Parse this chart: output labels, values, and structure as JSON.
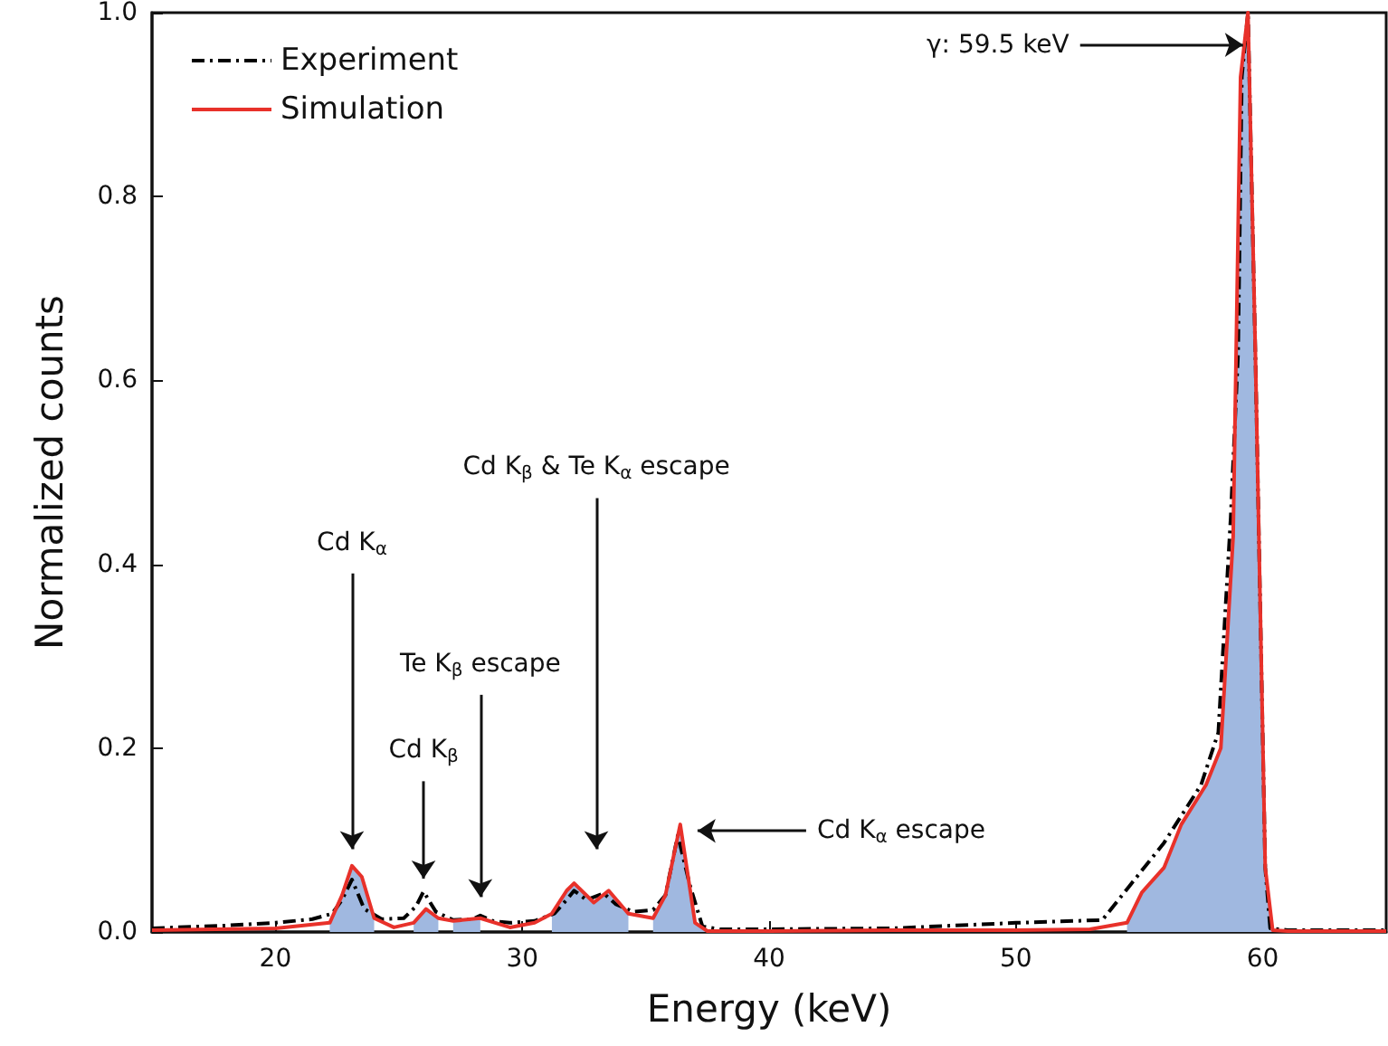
{
  "chart_data": {
    "type": "line",
    "xlabel": "Energy (keV)",
    "ylabel": "Normalized counts",
    "xlim": [
      15,
      65
    ],
    "ylim": [
      0,
      1.0
    ],
    "xticks": [
      20,
      30,
      40,
      50,
      60
    ],
    "yticks": [
      {
        "value": 0,
        "label": "0.0"
      },
      0.2,
      0.4,
      0.6,
      0.8,
      {
        "value": 1.0,
        "label": "1.0"
      }
    ],
    "grid": false,
    "legend": "top left",
    "marker": "none",
    "series": [
      {
        "type": "area",
        "color": "#a0b8e0",
        "x": [
          22.2,
          22.7,
          23.1,
          23.5,
          24.0,
          24.4,
          25.6,
          26.1,
          26.6,
          27.0,
          27.2,
          28.3,
          29.0,
          31.2,
          31.8,
          32.1,
          32.9,
          33.5,
          34.3,
          34.8,
          35.3,
          35.8,
          36.4,
          37.0,
          37.5,
          45,
          54.5,
          55.1,
          56.0,
          56.7,
          57.7,
          58.3,
          58.8,
          59.1,
          59.4,
          59.7,
          59.9,
          60.1,
          60.4
        ],
        "values": [
          0.01,
          0.04,
          0.072,
          0.06,
          0.015,
          null,
          0.01,
          0.025,
          0.015,
          null,
          0.012,
          0.015,
          null,
          0.02,
          0.045,
          0.053,
          0.032,
          0.045,
          0.02,
          null,
          0.015,
          0.04,
          0.117,
          0.01,
          0.001,
          null,
          0.01,
          0.043,
          0.07,
          0.117,
          0.16,
          0.2,
          0.43,
          0.93,
          1.0,
          0.63,
          0.35,
          0.07,
          0.002
        ]
      },
      {
        "name": "Experiment",
        "color": "#000000",
        "line_style": "dashed",
        "x": [
          15,
          18,
          20,
          21.5,
          22.3,
          22.7,
          23.1,
          23.6,
          24.3,
          25.2,
          25.7,
          26.0,
          26.5,
          27.2,
          28.0,
          28.3,
          28.8,
          29.5,
          30.5,
          31.3,
          31.8,
          32.1,
          32.6,
          33.3,
          33.8,
          34.5,
          35.3,
          35.8,
          36.3,
          36.8,
          37.3,
          38,
          40,
          45,
          50,
          53.5,
          54.6,
          56.0,
          57.5,
          58.2,
          58.7,
          59.0,
          59.15,
          59.4,
          59.7,
          59.9,
          60.1,
          60.3,
          61,
          65
        ],
        "values": [
          0.004,
          0.007,
          0.01,
          0.014,
          0.02,
          0.035,
          0.057,
          0.025,
          0.014,
          0.015,
          0.028,
          0.044,
          0.022,
          0.013,
          0.014,
          0.018,
          0.012,
          0.01,
          0.012,
          0.02,
          0.035,
          0.045,
          0.035,
          0.042,
          0.03,
          0.022,
          0.024,
          0.04,
          0.105,
          0.05,
          0.006,
          0.003,
          0.003,
          0.004,
          0.01,
          0.013,
          0.05,
          0.097,
          0.16,
          0.217,
          0.45,
          0.63,
          0.93,
          1.0,
          0.63,
          0.35,
          0.07,
          0.004,
          0.002,
          0.002
        ]
      },
      {
        "name": "Simulation",
        "color": "#e8312a",
        "line_style": "solid",
        "x": [
          15,
          20,
          22.2,
          22.7,
          23.1,
          23.5,
          24.0,
          24.8,
          25.6,
          26.1,
          26.6,
          27.2,
          28.3,
          29.5,
          30.5,
          31.2,
          31.8,
          32.1,
          32.9,
          33.5,
          34.3,
          35.3,
          35.8,
          36.4,
          37.0,
          37.5,
          40,
          45,
          50,
          53,
          54.5,
          55.1,
          56.0,
          56.7,
          57.7,
          58.3,
          58.8,
          59.1,
          59.4,
          59.7,
          59.9,
          60.1,
          60.4,
          61,
          65
        ],
        "values": [
          0.002,
          0.004,
          0.01,
          0.04,
          0.072,
          0.06,
          0.015,
          0.005,
          0.01,
          0.025,
          0.015,
          0.012,
          0.015,
          0.005,
          0.01,
          0.02,
          0.045,
          0.053,
          0.032,
          0.045,
          0.02,
          0.015,
          0.04,
          0.117,
          0.01,
          0.001,
          0.001,
          0.002,
          0.002,
          0.003,
          0.01,
          0.043,
          0.07,
          0.117,
          0.16,
          0.2,
          0.43,
          0.93,
          1.0,
          0.63,
          0.35,
          0.07,
          0.002,
          0.001,
          0.001
        ]
      }
    ],
    "annotations": [
      {
        "text": "γ: 59.5 keV",
        "x": 59.2,
        "y": 0.965
      },
      "Cd K$_{α}$",
      "Cd K$_{β}$",
      "Te K$_{β}$ escape",
      "Cd K$_{β}$ & Te K$_{α}$ escape",
      "Cd K$_{α}$ escape"
    ]
  }
}
